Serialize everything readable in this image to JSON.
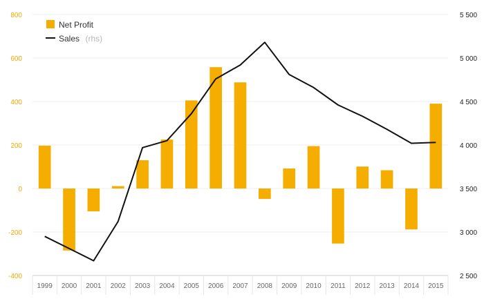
{
  "chart_data": {
    "type": "bar",
    "categories": [
      "1999",
      "2000",
      "2001",
      "2002",
      "2003",
      "2004",
      "2005",
      "2006",
      "2007",
      "2008",
      "2009",
      "2010",
      "2011",
      "2012",
      "2013",
      "2014",
      "2015"
    ],
    "series": [
      {
        "name": "Net Profit",
        "type": "bar",
        "axis": "left",
        "color": "#f5ad00",
        "values": [
          197,
          -285,
          -105,
          11,
          130,
          225,
          405,
          558,
          488,
          -48,
          92,
          195,
          -253,
          101,
          84,
          -188,
          390
        ]
      },
      {
        "name": "Sales",
        "name_suffix": "(rhs)",
        "type": "line",
        "axis": "right",
        "color": "#111111",
        "values": [
          2950,
          2810,
          2670,
          3120,
          3970,
          4050,
          4360,
          4760,
          4920,
          5180,
          4810,
          4660,
          4460,
          4330,
          4180,
          4020,
          4030
        ]
      }
    ],
    "y_left": {
      "lim": [
        -400,
        800
      ],
      "ticks": [
        -400,
        -200,
        0,
        200,
        400,
        600,
        800
      ],
      "tick_labels": [
        "-400",
        "-200",
        "0",
        "200",
        "400",
        "600",
        "800"
      ],
      "color": "#f5a800"
    },
    "y_right": {
      "lim": [
        2500,
        5500
      ],
      "ticks": [
        2500,
        3000,
        3500,
        4000,
        4500,
        5000,
        5500
      ],
      "tick_labels": [
        "2 500",
        "3 000",
        "3 500",
        "4 000",
        "4 500",
        "5 000",
        "5 500"
      ],
      "color": "#222222"
    },
    "grid": true,
    "legend_position": "top-left"
  }
}
